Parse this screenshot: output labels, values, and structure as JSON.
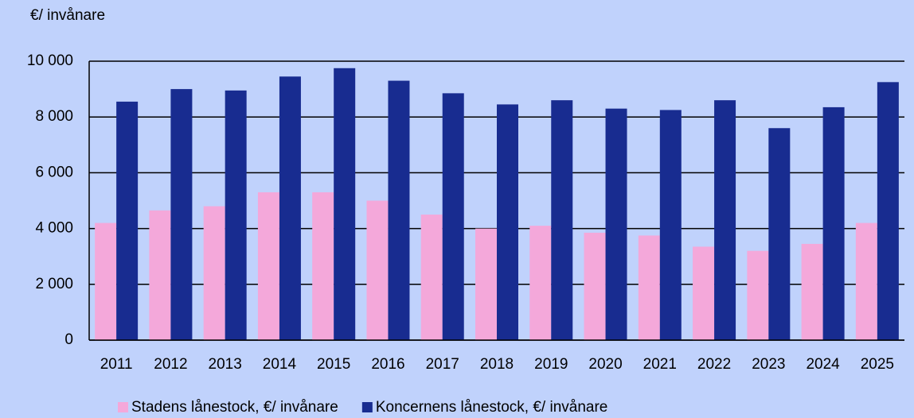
{
  "chart_data": {
    "type": "bar",
    "y_label": "€/ invånare",
    "categories": [
      "2011",
      "2012",
      "2013",
      "2014",
      "2015",
      "2016",
      "2017",
      "2018",
      "2019",
      "2020",
      "2021",
      "2022",
      "2023",
      "2024",
      "2025"
    ],
    "series": [
      {
        "name": "Stadens lånestock, €/ invånare",
        "color": "#f4a8da",
        "values": [
          4200,
          4650,
          4800,
          5300,
          5300,
          5000,
          4500,
          4000,
          4100,
          3850,
          3750,
          3350,
          3200,
          3450,
          4200
        ]
      },
      {
        "name": "Koncernens lånestock, €/ invånare",
        "color": "#182c90",
        "values": [
          8550,
          9000,
          8950,
          9450,
          9750,
          9300,
          8850,
          8450,
          8600,
          8300,
          8250,
          8600,
          7600,
          8350,
          9250
        ]
      }
    ],
    "ylim": [
      0,
      10000
    ],
    "yticks": [
      0,
      {
        "value": 2000,
        "label": "2 000"
      },
      {
        "value": 4000,
        "label": "4 000"
      },
      {
        "value": 6000,
        "label": "6 000"
      },
      {
        "value": 8000,
        "label": "8 000"
      },
      {
        "value": 10000,
        "label": "10 000"
      }
    ],
    "grid": true,
    "legend": "bottom"
  }
}
